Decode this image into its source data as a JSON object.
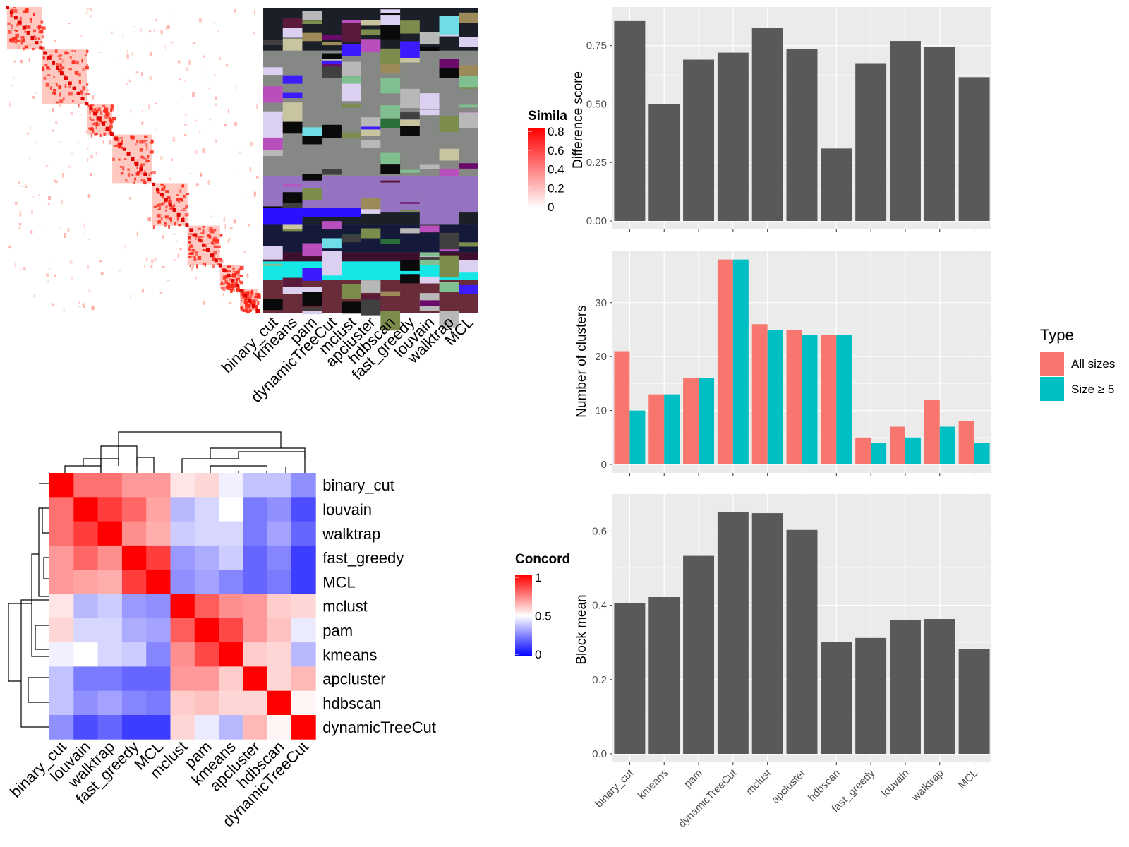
{
  "colors": {
    "bar_dark": "#595959",
    "panel_bg": "#ebebeb",
    "grid": "#ffffff",
    "all_sizes": "#F8766D",
    "size_ge5": "#00BFC4",
    "concord_low": "#0000ff",
    "concord_mid": "#ffffff",
    "concord_high": "#ff0000"
  },
  "similarity_legend": {
    "title": "Simila",
    "ticks": [
      "0.8",
      "0.6",
      "0.4",
      "0.2",
      "0"
    ]
  },
  "membership_heatmap": {
    "methods": [
      "binary_cut",
      "kmeans",
      "pam",
      "dynamicTreeCut",
      "mclust",
      "apcluster",
      "hdbscan",
      "fast_greedy",
      "louvain",
      "walktrap",
      "MCL"
    ]
  },
  "concordance_heatmap": {
    "legend_title": "Concord",
    "legend_ticks": [
      "1",
      "0.5",
      "0"
    ],
    "column_labels": [
      "binary_cut",
      "louvain",
      "walktrap",
      "fast_greedy",
      "MCL",
      "mclust",
      "pam",
      "kmeans",
      "apcluster",
      "hdbscan",
      "dynamicTreeCut"
    ],
    "row_labels": [
      "binary_cut",
      "louvain",
      "walktrap",
      "fast_greedy",
      "MCL",
      "mclust",
      "pam",
      "kmeans",
      "apcluster",
      "hdbscan",
      "dynamicTreeCut"
    ],
    "matrix": [
      [
        1.0,
        0.78,
        0.78,
        0.7,
        0.7,
        0.55,
        0.58,
        0.47,
        0.38,
        0.38,
        0.28
      ],
      [
        0.78,
        1.0,
        0.88,
        0.8,
        0.68,
        0.36,
        0.42,
        0.5,
        0.24,
        0.28,
        0.15
      ],
      [
        0.78,
        0.88,
        1.0,
        0.72,
        0.66,
        0.4,
        0.42,
        0.42,
        0.24,
        0.32,
        0.2
      ],
      [
        0.7,
        0.8,
        0.72,
        1.0,
        0.88,
        0.3,
        0.34,
        0.4,
        0.2,
        0.26,
        0.12
      ],
      [
        0.7,
        0.68,
        0.66,
        0.88,
        1.0,
        0.28,
        0.32,
        0.26,
        0.2,
        0.24,
        0.12
      ],
      [
        0.55,
        0.36,
        0.4,
        0.3,
        0.28,
        1.0,
        0.82,
        0.72,
        0.7,
        0.6,
        0.58
      ],
      [
        0.58,
        0.42,
        0.42,
        0.34,
        0.32,
        0.82,
        1.0,
        0.86,
        0.7,
        0.62,
        0.46
      ],
      [
        0.47,
        0.5,
        0.42,
        0.4,
        0.26,
        0.72,
        0.86,
        1.0,
        0.6,
        0.58,
        0.36
      ],
      [
        0.38,
        0.24,
        0.24,
        0.2,
        0.2,
        0.7,
        0.7,
        0.6,
        1.0,
        0.58,
        0.64
      ],
      [
        0.38,
        0.28,
        0.32,
        0.26,
        0.24,
        0.6,
        0.62,
        0.58,
        0.58,
        1.0,
        0.52
      ],
      [
        0.28,
        0.15,
        0.2,
        0.12,
        0.12,
        0.58,
        0.46,
        0.36,
        0.64,
        0.52,
        1.0
      ]
    ]
  },
  "chart_data": [
    {
      "type": "bar",
      "categories": [
        "binary_cut",
        "kmeans",
        "pam",
        "dynamicTreeCut",
        "mclust",
        "apcluster",
        "hdbscan",
        "fast_greedy",
        "louvain",
        "walktrap",
        "MCL"
      ],
      "values": [
        0.855,
        0.5,
        0.69,
        0.72,
        0.825,
        0.735,
        0.31,
        0.675,
        0.77,
        0.745,
        0.615
      ],
      "ylabel": "Difference score",
      "ylim": [
        0,
        0.9
      ],
      "yticks": [
        "0.00",
        "0.25",
        "0.50",
        "0.75"
      ],
      "grid": true
    },
    {
      "type": "bar",
      "categories": [
        "binary_cut",
        "kmeans",
        "pam",
        "dynamicTreeCut",
        "mclust",
        "apcluster",
        "hdbscan",
        "fast_greedy",
        "louvain",
        "walktrap",
        "MCL"
      ],
      "series": [
        {
          "name": "All sizes",
          "values": [
            21,
            13,
            16,
            38,
            26,
            25,
            24,
            5,
            7,
            12,
            8
          ]
        },
        {
          "name": "Size ≥ 5",
          "values": [
            10,
            13,
            16,
            38,
            25,
            24,
            24,
            4,
            5,
            7,
            4
          ]
        }
      ],
      "ylabel": "Number of clusters",
      "ylim": [
        0,
        39
      ],
      "yticks": [
        "0",
        "10",
        "20",
        "30"
      ],
      "legend_title": "Type",
      "legend_position": "right",
      "grid": true
    },
    {
      "type": "bar",
      "categories": [
        "binary_cut",
        "kmeans",
        "pam",
        "dynamicTreeCut",
        "mclust",
        "apcluster",
        "hdbscan",
        "fast_greedy",
        "louvain",
        "walktrap",
        "MCL"
      ],
      "values": [
        0.405,
        0.422,
        0.533,
        0.652,
        0.648,
        0.603,
        0.302,
        0.312,
        0.36,
        0.363,
        0.283
      ],
      "ylabel": "Block mean",
      "ylim": [
        0,
        0.69
      ],
      "yticks": [
        "0.0",
        "0.2",
        "0.4",
        "0.6"
      ],
      "grid": true
    }
  ]
}
